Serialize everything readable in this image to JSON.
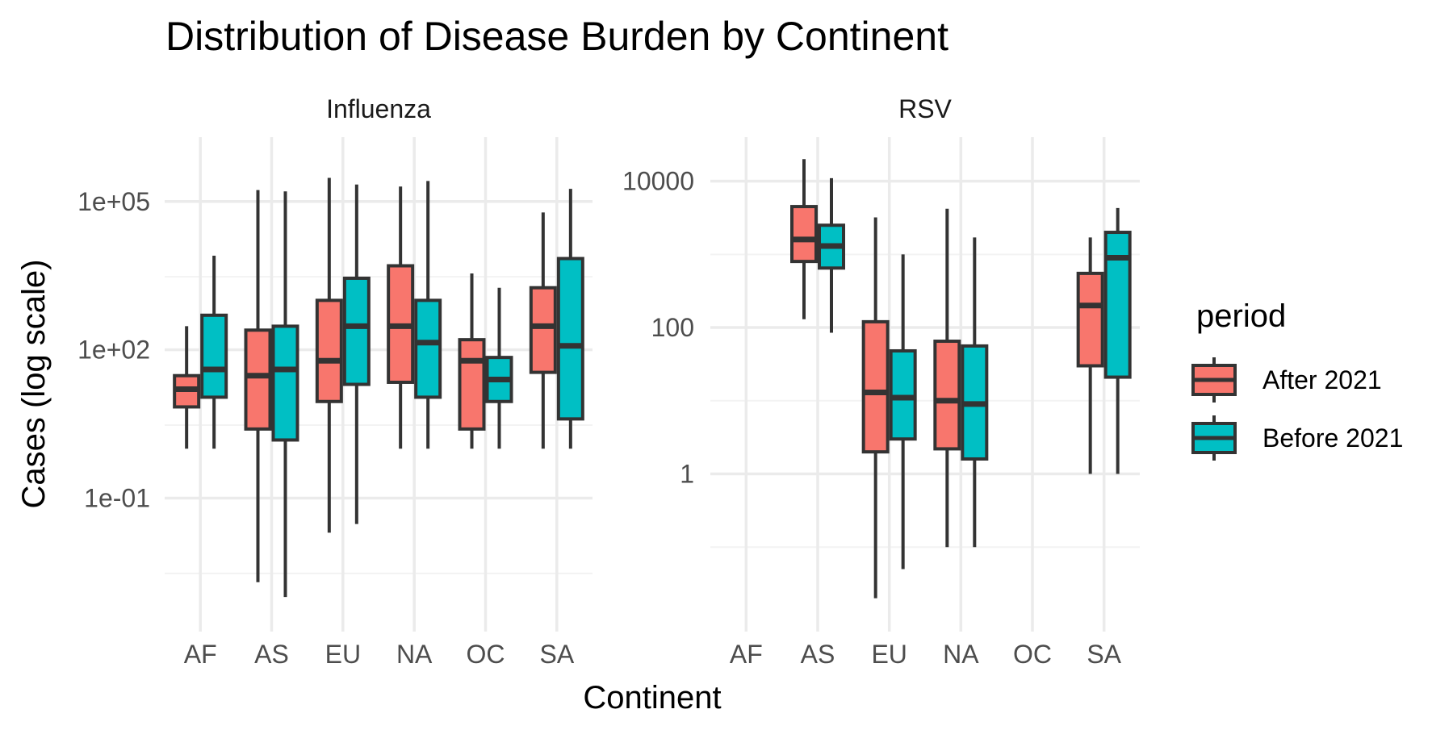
{
  "chart_data": {
    "type": "boxplot",
    "title": "Distribution of Disease Burden by Continent",
    "xlabel": "Continent",
    "ylabel": "Cases (log scale)",
    "y_scale": "log10",
    "categories": [
      "AF",
      "AS",
      "EU",
      "NA",
      "OC",
      "SA"
    ],
    "legend": {
      "title": "period",
      "position": "right",
      "entries": [
        {
          "name": "After 2021",
          "color": "#F8766D"
        },
        {
          "name": "Before 2021",
          "color": "#00BFC4"
        }
      ]
    },
    "grid": true,
    "colors": {
      "box_stroke": "#333333",
      "grid_major": "#EBEBEB",
      "grid_minor": "#F3F3F3"
    },
    "panels": [
      {
        "name": "Influenza",
        "ylim": [
          0.0002,
          2000000
        ],
        "y_ticks": [
          {
            "value": 0.1,
            "label": "1e-01"
          },
          {
            "value": 100,
            "label": "1e+02"
          },
          {
            "value": 100000,
            "label": "1e+05"
          }
        ],
        "y_minor": [
          0.003,
          3,
          3000
        ],
        "boxes": [
          {
            "category": "AF",
            "series": "After 2021",
            "min": 1,
            "q1": 7,
            "median": 16,
            "q3": 30,
            "max": 300
          },
          {
            "category": "AF",
            "series": "Before 2021",
            "min": 1,
            "q1": 11,
            "median": 40,
            "q3": 500,
            "max": 8000
          },
          {
            "category": "AS",
            "series": "After 2021",
            "min": 0.002,
            "q1": 2.5,
            "median": 30,
            "q3": 250,
            "max": 170000
          },
          {
            "category": "AS",
            "series": "Before 2021",
            "min": 0.001,
            "q1": 1.5,
            "median": 40,
            "q3": 300,
            "max": 160000
          },
          {
            "category": "EU",
            "series": "After 2021",
            "min": 0.02,
            "q1": 9,
            "median": 60,
            "q3": 1000,
            "max": 300000
          },
          {
            "category": "EU",
            "series": "Before 2021",
            "min": 0.03,
            "q1": 20,
            "median": 300,
            "q3": 2800,
            "max": 220000
          },
          {
            "category": "NA",
            "series": "After 2021",
            "min": 1,
            "q1": 22,
            "median": 300,
            "q3": 5000,
            "max": 200000
          },
          {
            "category": "NA",
            "series": "Before 2021",
            "min": 1,
            "q1": 11,
            "median": 140,
            "q3": 1000,
            "max": 260000
          },
          {
            "category": "OC",
            "series": "After 2021",
            "min": 1,
            "q1": 2.5,
            "median": 60,
            "q3": 160,
            "max": 3500
          },
          {
            "category": "OC",
            "series": "Before 2021",
            "min": 1,
            "q1": 9,
            "median": 25,
            "q3": 70,
            "max": 1800
          },
          {
            "category": "SA",
            "series": "After 2021",
            "min": 1,
            "q1": 35,
            "median": 300,
            "q3": 1800,
            "max": 60000
          },
          {
            "category": "SA",
            "series": "Before 2021",
            "min": 1,
            "q1": 4,
            "median": 120,
            "q3": 7000,
            "max": 180000
          }
        ]
      },
      {
        "name": "RSV",
        "ylim": [
          0.007,
          40000
        ],
        "y_ticks": [
          {
            "value": 1,
            "label": "1"
          },
          {
            "value": 100,
            "label": "100"
          },
          {
            "value": 10000,
            "label": "10000"
          }
        ],
        "y_minor": [
          0.1,
          10,
          1000
        ],
        "boxes": [
          {
            "category": "AS",
            "series": "After 2021",
            "min": 130,
            "q1": 800,
            "median": 1600,
            "q3": 4500,
            "max": 20000
          },
          {
            "category": "AS",
            "series": "Before 2021",
            "min": 85,
            "q1": 650,
            "median": 1300,
            "q3": 2500,
            "max": 11000
          },
          {
            "category": "EU",
            "series": "After 2021",
            "min": 0.02,
            "q1": 2,
            "median": 13,
            "q3": 120,
            "max": 3200
          },
          {
            "category": "EU",
            "series": "Before 2021",
            "min": 0.05,
            "q1": 3,
            "median": 11,
            "q3": 48,
            "max": 1000
          },
          {
            "category": "NA",
            "series": "After 2021",
            "min": 0.1,
            "q1": 2.2,
            "median": 10,
            "q3": 65,
            "max": 4200
          },
          {
            "category": "NA",
            "series": "Before 2021",
            "min": 0.1,
            "q1": 1.6,
            "median": 9,
            "q3": 56,
            "max": 1700
          },
          {
            "category": "SA",
            "series": "After 2021",
            "min": 1,
            "q1": 30,
            "median": 200,
            "q3": 550,
            "max": 1700
          },
          {
            "category": "SA",
            "series": "Before 2021",
            "min": 1,
            "q1": 21,
            "median": 900,
            "q3": 2000,
            "max": 4300
          }
        ]
      }
    ]
  }
}
